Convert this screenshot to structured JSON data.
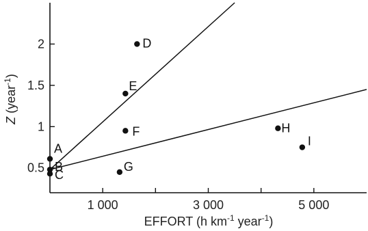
{
  "chart_data": {
    "type": "scatter",
    "xlabel_parts": [
      "EFFORT (h km",
      "-1",
      " year",
      "-1",
      ")"
    ],
    "ylabel_parts": [
      "Z",
      " (year",
      "-1",
      ")"
    ],
    "xlim": [
      0,
      6000
    ],
    "ylim": [
      0.2,
      2.5
    ],
    "xticks": [
      {
        "value": 1000,
        "label": "1 000"
      },
      {
        "value": 2000,
        "label": ""
      },
      {
        "value": 3000,
        "label": "3 000"
      },
      {
        "value": 4000,
        "label": ""
      },
      {
        "value": 5000,
        "label": "5 000"
      }
    ],
    "yticks": [
      {
        "value": 0.5,
        "label": "0.5"
      },
      {
        "value": 1,
        "label": "1"
      },
      {
        "value": 1.5,
        "label": "1.5"
      },
      {
        "value": 2,
        "label": "2"
      }
    ],
    "points": [
      {
        "label": "A",
        "x": 0,
        "y": 0.61
      },
      {
        "label": "B",
        "x": 0,
        "y": 0.48
      },
      {
        "label": "C",
        "x": 0,
        "y": 0.43
      },
      {
        "label": "D",
        "x": 1650,
        "y": 2.0
      },
      {
        "label": "E",
        "x": 1430,
        "y": 1.4
      },
      {
        "label": "F",
        "x": 1430,
        "y": 0.95
      },
      {
        "label": "G",
        "x": 1320,
        "y": 0.45
      },
      {
        "label": "H",
        "x": 4320,
        "y": 0.98
      },
      {
        "label": "I",
        "x": 4780,
        "y": 0.75
      }
    ],
    "lines": [
      {
        "x": [
          0,
          3500
        ],
        "y": [
          0.48,
          2.5
        ]
      },
      {
        "x": [
          0,
          6000
        ],
        "y": [
          0.48,
          1.45
        ]
      }
    ]
  }
}
